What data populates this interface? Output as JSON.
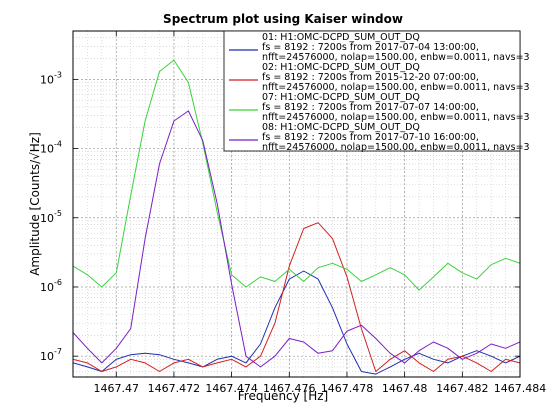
{
  "chart_data": {
    "type": "line",
    "title": "Spectrum plot using Kaiser window",
    "xlabel": "Frequency [Hz]",
    "ylabel": "Amplitude [Counts/√Hz]",
    "xlim": [
      1467.4685,
      1467.484
    ],
    "ylim": [
      5e-08,
      0.005
    ],
    "y_scale": "log",
    "grid": true,
    "legend_placement": "top-right",
    "x_ticks": [
      {
        "value": 1467.47,
        "label": "1467.47"
      },
      {
        "value": 1467.472,
        "label": "1467.472"
      },
      {
        "value": 1467.474,
        "label": "1467.474"
      },
      {
        "value": 1467.476,
        "label": "1467.476"
      },
      {
        "value": 1467.478,
        "label": "1467.478"
      },
      {
        "value": 1467.48,
        "label": "1467.48"
      },
      {
        "value": 1467.482,
        "label": "1467.482"
      },
      {
        "value": 1467.484,
        "label": "1467.484"
      }
    ],
    "y_ticks": [
      {
        "value": 1e-07,
        "base": "10",
        "exp": "-7"
      },
      {
        "value": 1e-06,
        "base": "10",
        "exp": "-6"
      },
      {
        "value": 1e-05,
        "base": "10",
        "exp": "-5"
      },
      {
        "value": 0.0001,
        "base": "10",
        "exp": "-4"
      },
      {
        "value": 0.001,
        "base": "10",
        "exp": "-3"
      }
    ],
    "series": [
      {
        "legend_lines": [
          "01: H1:OMC-DCPD_SUM_OUT_DQ",
          "fs = 8192 : 7200s from 2017-07-04 13:00:00,",
          "nfft=24576000, nolap=1500.00, enbw=0.0011, navs=3"
        ],
        "color": "#1f2fb0",
        "x": [
          1467.4685,
          1467.469,
          1467.4695,
          1467.47,
          1467.4705,
          1467.471,
          1467.4715,
          1467.472,
          1467.4725,
          1467.473,
          1467.4735,
          1467.474,
          1467.4745,
          1467.475,
          1467.4755,
          1467.476,
          1467.4765,
          1467.477,
          1467.4775,
          1467.478,
          1467.4785,
          1467.479,
          1467.4795,
          1467.48,
          1467.4805,
          1467.481,
          1467.4815,
          1467.482,
          1467.4825,
          1467.483,
          1467.4835,
          1467.484
        ],
        "y": [
          8e-08,
          7e-08,
          6e-08,
          9e-08,
          1.05e-07,
          1.1e-07,
          1.05e-07,
          9e-08,
          8e-08,
          7e-08,
          9e-08,
          1e-07,
          8e-08,
          1.5e-07,
          5e-07,
          1.3e-06,
          1.7e-06,
          1.3e-06,
          5e-07,
          1.5e-07,
          6e-08,
          5.5e-08,
          7e-08,
          9e-08,
          1.1e-07,
          9e-08,
          8e-08,
          1e-07,
          1.2e-07,
          1e-07,
          8e-08,
          1e-07
        ]
      },
      {
        "legend_lines": [
          "02: H1:OMC-DCPD_SUM_OUT_DQ",
          "fs = 8192 : 7200s from 2015-12-20 07:00:00,",
          "nfft=24576000, nolap=1500.00, enbw=0.0011, navs=3"
        ],
        "color": "#d21f1f",
        "x": [
          1467.4685,
          1467.469,
          1467.4695,
          1467.47,
          1467.4705,
          1467.471,
          1467.4715,
          1467.472,
          1467.4725,
          1467.473,
          1467.4735,
          1467.474,
          1467.4745,
          1467.475,
          1467.4755,
          1467.476,
          1467.4765,
          1467.477,
          1467.4775,
          1467.478,
          1467.4785,
          1467.479,
          1467.4795,
          1467.48,
          1467.4805,
          1467.481,
          1467.4815,
          1467.482,
          1467.4825,
          1467.483,
          1467.4835,
          1467.484
        ],
        "y": [
          9e-08,
          8e-08,
          6e-08,
          7e-08,
          9e-08,
          8e-08,
          6e-08,
          8e-08,
          9e-08,
          7e-08,
          8e-08,
          9e-08,
          7e-08,
          1e-07,
          3e-07,
          2e-06,
          7e-06,
          8.5e-06,
          5e-06,
          1.4e-06,
          2.5e-07,
          6e-08,
          9e-08,
          1.2e-07,
          8e-08,
          6e-08,
          9e-08,
          1e-07,
          8e-08,
          6e-08,
          9e-08,
          8e-08
        ]
      },
      {
        "legend_lines": [
          "07: H1:OMC-DCPD_SUM_OUT_DQ",
          "fs = 8192 : 7200s from 2017-07-07 14:00:00,",
          "nfft=24576000, nolap=1500.00, enbw=0.0011, navs=3"
        ],
        "color": "#3ad33a",
        "x": [
          1467.4685,
          1467.469,
          1467.4695,
          1467.47,
          1467.4705,
          1467.471,
          1467.4715,
          1467.472,
          1467.4725,
          1467.473,
          1467.4735,
          1467.474,
          1467.4745,
          1467.475,
          1467.4755,
          1467.476,
          1467.4765,
          1467.477,
          1467.4775,
          1467.478,
          1467.4785,
          1467.479,
          1467.4795,
          1467.48,
          1467.4805,
          1467.481,
          1467.4815,
          1467.482,
          1467.4825,
          1467.483,
          1467.4835,
          1467.484
        ],
        "y": [
          2e-06,
          1.5e-06,
          1e-06,
          1.6e-06,
          2.1e-05,
          0.00025,
          0.0013,
          0.0019,
          0.0009,
          0.00012,
          1.2e-05,
          1.5e-06,
          1e-06,
          1.4e-06,
          1.2e-06,
          1.8e-06,
          1.2e-06,
          1.9e-06,
          2.2e-06,
          1.8e-06,
          1.2e-06,
          1.5e-06,
          1.9e-06,
          1.5e-06,
          9e-07,
          1.4e-06,
          2.2e-06,
          1.6e-06,
          1.3e-06,
          2.1e-06,
          2.6e-06,
          2.2e-06
        ]
      },
      {
        "legend_lines": [
          "08: H1:OMC-DCPD_SUM_OUT_DQ",
          "fs = 8192 : 7200s from 2017-07-10 16:00:00,",
          "nfft=24576000, nolap=1500.00, enbw=0.0011, navs=3"
        ],
        "color": "#7a1fc7",
        "x": [
          1467.4685,
          1467.469,
          1467.4695,
          1467.47,
          1467.4705,
          1467.471,
          1467.4715,
          1467.472,
          1467.4725,
          1467.473,
          1467.4735,
          1467.474,
          1467.4745,
          1467.475,
          1467.4755,
          1467.476,
          1467.4765,
          1467.477,
          1467.4775,
          1467.478,
          1467.4785,
          1467.479,
          1467.4795,
          1467.48,
          1467.4805,
          1467.481,
          1467.4815,
          1467.482,
          1467.4825,
          1467.483,
          1467.4835,
          1467.484
        ],
        "y": [
          2.2e-07,
          1.3e-07,
          8e-08,
          1.3e-07,
          2.5e-07,
          5e-06,
          6e-05,
          0.00025,
          0.00035,
          0.00013,
          1.6e-05,
          1.1e-06,
          1e-07,
          7e-08,
          1e-07,
          1.8e-07,
          1.6e-07,
          1.1e-07,
          1.2e-07,
          2.3e-07,
          2.8e-07,
          1.8e-07,
          1.1e-07,
          8e-08,
          1.2e-07,
          1.6e-07,
          1.3e-07,
          9e-08,
          1.1e-07,
          1.5e-07,
          1.3e-07,
          1.6e-07
        ]
      }
    ]
  }
}
